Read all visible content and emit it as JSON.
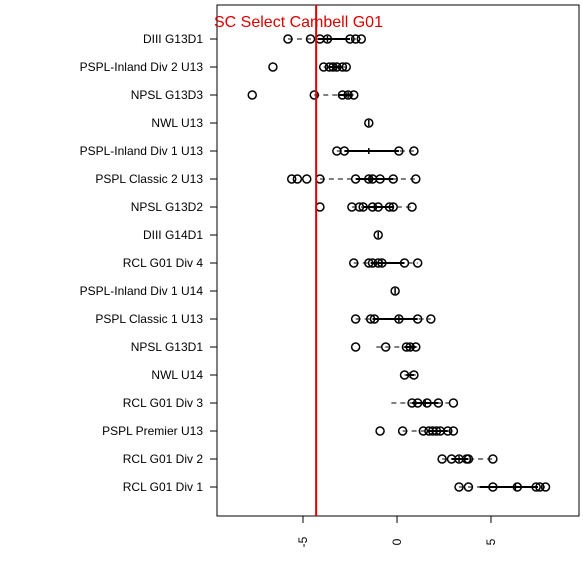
{
  "chart_data": {
    "type": "boxplot",
    "title": "SC Select Cambell G01",
    "reference_line": {
      "value": -4.3,
      "color": "#dd0000"
    },
    "xlim": [
      -9,
      10
    ],
    "xticks": [
      -5,
      0,
      5
    ],
    "xtick_labels": [
      "-5",
      "0",
      "5"
    ],
    "grid": false,
    "series": [
      {
        "category": "DIII G13D1",
        "whisker": [
          -5.8,
          -1.9
        ],
        "box": [
          -4.2,
          -2.5
        ],
        "median": -3.7,
        "points": [
          -5.8,
          -4.6,
          -4.1,
          -3.7,
          -2.5,
          -2.2,
          -1.9
        ]
      },
      {
        "category": "PSPL-Inland Div 2 U13",
        "whisker": [
          -3.9,
          -2.7
        ],
        "box": [
          -3.6,
          -2.9
        ],
        "median": -3.3,
        "points": [
          -6.6,
          -3.9,
          -3.6,
          -3.4,
          -3.2,
          -2.9,
          -2.7
        ]
      },
      {
        "category": "NPSL G13D3",
        "whisker": [
          -4.4,
          -2.3
        ],
        "box": [
          -3.1,
          -2.4
        ],
        "median": -2.6,
        "points": [
          -7.7,
          -4.4,
          -2.9,
          -2.6,
          -2.3
        ]
      },
      {
        "category": "NWL U13",
        "whisker": [
          -1.5,
          -1.5
        ],
        "box": [
          -1.5,
          -1.5
        ],
        "median": -1.5,
        "points": [
          -1.5
        ]
      },
      {
        "category": "PSPL-Inland Div 1 U13",
        "whisker": [
          -3.2,
          0.9
        ],
        "box": [
          -2.8,
          0.1
        ],
        "median": -1.5,
        "points": [
          -3.2,
          -2.8,
          0.1,
          0.9
        ]
      },
      {
        "category": "PSPL Classic 2 U13",
        "whisker": [
          -4.1,
          1.0
        ],
        "box": [
          -2.2,
          -0.2
        ],
        "median": -1.4,
        "points": [
          -5.6,
          -5.3,
          -4.8,
          -4.1,
          -2.2,
          -1.5,
          -1.3,
          -0.9,
          -0.2,
          1.0
        ]
      },
      {
        "category": "NPSL G13D2",
        "whisker": [
          -2.4,
          0.8
        ],
        "box": [
          -1.8,
          -0.2
        ],
        "median": -1.2,
        "points": [
          -4.1,
          -2.4,
          -2.0,
          -1.8,
          -1.3,
          -1.0,
          -0.4,
          -0.2,
          0.8
        ]
      },
      {
        "category": "DIII G14D1",
        "whisker": [
          -1.0,
          -1.0
        ],
        "box": [
          -1.0,
          -1.0
        ],
        "median": -1.0,
        "points": [
          -1.0
        ]
      },
      {
        "category": "RCL G01 Div 4",
        "whisker": [
          -2.3,
          1.1
        ],
        "box": [
          -1.4,
          0.4
        ],
        "median": -0.8,
        "points": [
          -2.3,
          -1.5,
          -1.3,
          -1.0,
          -0.8,
          0.4,
          1.1
        ]
      },
      {
        "category": "PSPL-Inland Div 1 U14",
        "whisker": [
          -0.1,
          -0.1
        ],
        "box": [
          -0.1,
          -0.1
        ],
        "median": -0.1,
        "points": [
          -0.1
        ]
      },
      {
        "category": "PSPL Classic 1 U13",
        "whisker": [
          -2.2,
          1.8
        ],
        "box": [
          -1.3,
          1.1
        ],
        "median": 0.1,
        "points": [
          -2.2,
          -1.4,
          -1.2,
          0.1,
          1.1,
          1.8
        ]
      },
      {
        "category": "NPSL G13D1",
        "whisker": [
          -1.1,
          1.1
        ],
        "box": [
          0.4,
          1.0
        ],
        "median": 0.7,
        "points": [
          -2.2,
          -0.6,
          0.5,
          0.7,
          1.0
        ]
      },
      {
        "category": "NWL U14",
        "whisker": [
          0.4,
          1.0
        ],
        "box": [
          0.5,
          0.9
        ],
        "median": 0.7,
        "points": [
          0.4,
          0.9
        ]
      },
      {
        "category": "RCL G01 Div 3",
        "whisker": [
          -0.3,
          3.0
        ],
        "box": [
          0.8,
          2.2
        ],
        "median": 1.5,
        "points": [
          0.8,
          1.1,
          1.6,
          2.2,
          3.0
        ]
      },
      {
        "category": "PSPL Premier U13",
        "whisker": [
          0.3,
          3.0
        ],
        "box": [
          1.6,
          2.7
        ],
        "median": 2.1,
        "points": [
          -0.9,
          0.3,
          1.4,
          1.7,
          1.9,
          2.1,
          2.3,
          2.7,
          3.0
        ]
      },
      {
        "category": "RCL G01 Div 2",
        "whisker": [
          2.4,
          5.1
        ],
        "box": [
          2.9,
          3.8
        ],
        "median": 3.3,
        "points": [
          2.4,
          2.9,
          3.3,
          3.7,
          3.8,
          5.1
        ]
      },
      {
        "category": "RCL G01 Div 1",
        "whisker": [
          3.3,
          7.9
        ],
        "box": [
          4.4,
          7.5
        ],
        "median": 6.3,
        "points": [
          3.3,
          3.8,
          5.1,
          6.4,
          7.4,
          7.6,
          7.9
        ]
      }
    ]
  }
}
